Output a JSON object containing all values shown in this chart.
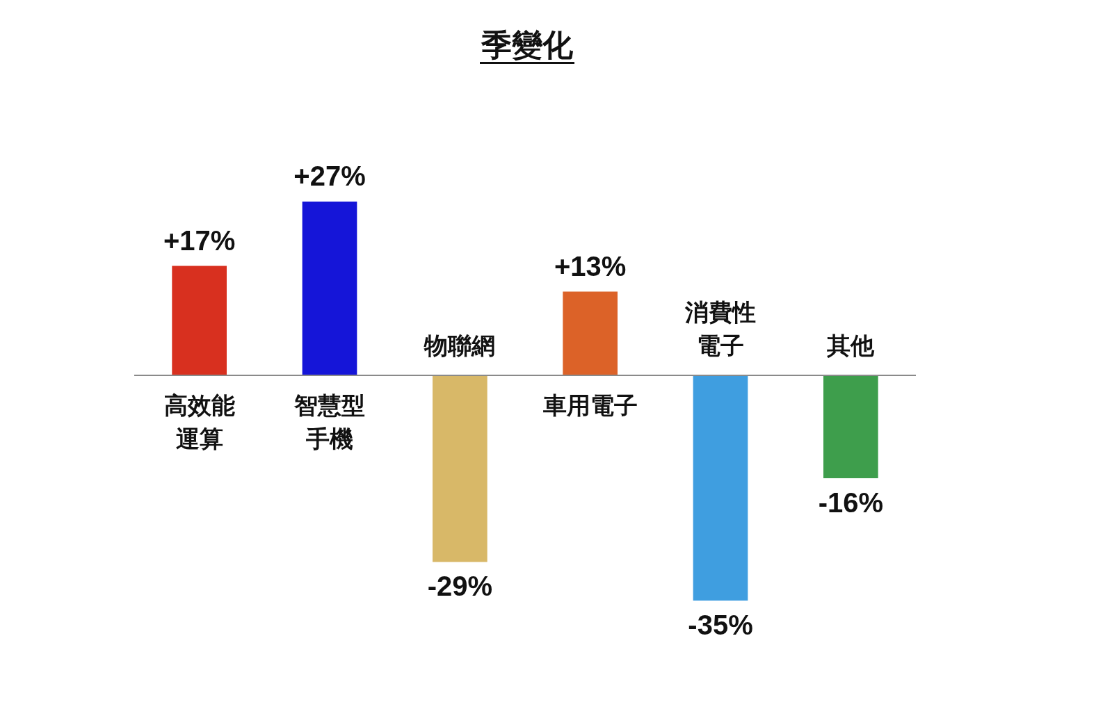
{
  "chart_data": {
    "type": "bar",
    "title": "季變化",
    "categories": [
      "高效能運算",
      "智慧型手機",
      "物聯網",
      "車用電子",
      "消費性電子",
      "其他"
    ],
    "values": [
      17,
      27,
      -29,
      13,
      -35,
      -16
    ],
    "tick_labels": "x",
    "value_labels": [
      "+17%",
      "+27%",
      "-29%",
      "+13%",
      "-35%",
      "-16%"
    ],
    "colors": [
      "#d8301f",
      "#1515d8",
      "#d8b868",
      "#dc6228",
      "#3f9ee0",
      "#3e9e4c"
    ],
    "legend": false
  }
}
